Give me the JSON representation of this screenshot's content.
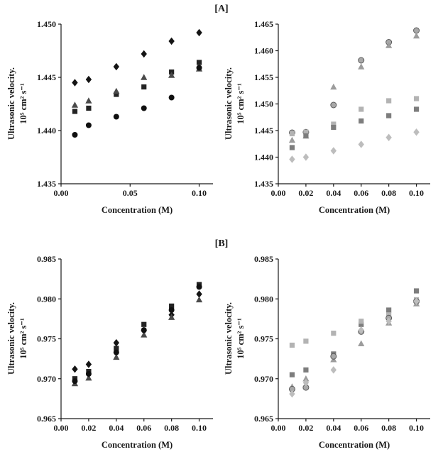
{
  "labels": {
    "panel_a": "[A]",
    "panel_b": "[B]"
  },
  "chart_data": [
    {
      "type": "scatter",
      "panel": "A",
      "position": "left",
      "ylabel_line1": "Ultrasonic velocity.",
      "ylabel_line2": "10⁵ cm² s⁻¹",
      "xlabel": "Concentration (M)",
      "grid": false,
      "legend": "none",
      "xlim": [
        0,
        0.11
      ],
      "ylim": [
        1.435,
        1.45
      ],
      "xticks": [
        0.0,
        0.05,
        0.1
      ],
      "xtick_labels": [
        "0.00",
        "0.05",
        "0.10"
      ],
      "yticks": [
        1.435,
        1.44,
        1.445,
        1.45
      ],
      "ytick_labels": [
        "1.435",
        "1.440",
        "1.445",
        "1.450"
      ],
      "x": [
        0.01,
        0.02,
        0.04,
        0.06,
        0.08,
        0.1
      ],
      "series": [
        {
          "name": "diamond-series",
          "marker": "diamond",
          "color": "#141414",
          "values": [
            1.4445,
            1.4448,
            1.446,
            1.4472,
            1.4484,
            1.4492
          ]
        },
        {
          "name": "square-series",
          "marker": "square",
          "color": "#232323",
          "values": [
            1.4418,
            1.4421,
            1.4434,
            1.4441,
            1.4455,
            1.4464
          ]
        },
        {
          "name": "triangle-series",
          "marker": "triangle",
          "color": "#4a4a4a",
          "values": [
            1.4424,
            1.4428,
            1.4437,
            1.445,
            1.4452,
            1.4458
          ]
        },
        {
          "name": "circle-series",
          "marker": "circle",
          "color": "#101010",
          "values": [
            1.4396,
            1.4405,
            1.4413,
            1.4421,
            1.4431,
            1.4459
          ]
        }
      ]
    },
    {
      "type": "scatter",
      "panel": "A",
      "position": "right",
      "ylabel_line1": "Ultrasonic velocity.",
      "ylabel_line2": "10⁵ cm² s⁻¹",
      "xlabel": "Concentration (M)",
      "grid": false,
      "legend": "none",
      "xlim": [
        0,
        0.11
      ],
      "ylim": [
        1.435,
        1.465
      ],
      "xticks": [
        0.0,
        0.02,
        0.04,
        0.06,
        0.08,
        0.1
      ],
      "xtick_labels": [
        "0.00",
        "0.02",
        "0.04",
        "0.06",
        "0.08",
        "0.10"
      ],
      "yticks": [
        1.435,
        1.44,
        1.445,
        1.45,
        1.455,
        1.46,
        1.465
      ],
      "ytick_labels": [
        "1.435",
        "1.440",
        "1.445",
        "1.450",
        "1.455",
        "1.460",
        "1.465"
      ],
      "x": [
        0.01,
        0.02,
        0.04,
        0.06,
        0.08,
        0.1
      ],
      "series": [
        {
          "name": "circle-series",
          "marker": "circle",
          "color": "#a8a8a8",
          "stroke": "#5a5a5a",
          "values": [
            1.4446,
            1.4447,
            1.4498,
            1.4582,
            1.4616,
            1.4638
          ]
        },
        {
          "name": "triangle-series",
          "marker": "triangle",
          "color": "#9c9c9c",
          "values": [
            1.4432,
            1.444,
            1.4532,
            1.457,
            1.461,
            1.4628
          ]
        },
        {
          "name": "light-square-series",
          "marker": "square",
          "color": "#b3b3b3",
          "values": [
            1.4444,
            1.4447,
            1.4462,
            1.449,
            1.4506,
            1.451
          ]
        },
        {
          "name": "dark-square-series",
          "marker": "square",
          "color": "#7d7d7d",
          "values": [
            1.4418,
            1.444,
            1.4456,
            1.4468,
            1.4478,
            1.449
          ]
        },
        {
          "name": "diamond-series",
          "marker": "diamond",
          "color": "#bdbdbd",
          "values": [
            1.4396,
            1.44,
            1.4412,
            1.4424,
            1.4437,
            1.4447
          ]
        }
      ]
    },
    {
      "type": "scatter",
      "panel": "B",
      "position": "left",
      "ylabel_line1": "Ultrasonic velocity.",
      "ylabel_line2": "10⁵ cm² s⁻¹",
      "xlabel": "Concentration (M)",
      "grid": false,
      "legend": "none",
      "xlim": [
        0,
        0.11
      ],
      "ylim": [
        0.965,
        0.985
      ],
      "xticks": [
        0.0,
        0.02,
        0.04,
        0.06,
        0.08,
        0.1
      ],
      "xtick_labels": [
        "0.00",
        "0.02",
        "0.04",
        "0.06",
        "0.08",
        "0.10"
      ],
      "yticks": [
        0.965,
        0.97,
        0.975,
        0.98,
        0.985
      ],
      "ytick_labels": [
        "0.965",
        "0.970",
        "0.975",
        "0.980",
        "0.985"
      ],
      "x": [
        0.01,
        0.02,
        0.04,
        0.06,
        0.08,
        0.1
      ],
      "series": [
        {
          "name": "diamond-series",
          "marker": "diamond",
          "color": "#141414",
          "values": [
            0.9712,
            0.9718,
            0.9745,
            0.976,
            0.978,
            0.9806
          ]
        },
        {
          "name": "square-series",
          "marker": "square",
          "color": "#232323",
          "values": [
            0.97,
            0.9709,
            0.9738,
            0.9768,
            0.9791,
            0.9818
          ]
        },
        {
          "name": "triangle-series",
          "marker": "triangle",
          "color": "#4a4a4a",
          "values": [
            0.9694,
            0.9701,
            0.9727,
            0.9755,
            0.9777,
            0.9799
          ]
        },
        {
          "name": "circle-series",
          "marker": "circle",
          "color": "#101010",
          "values": [
            0.9697,
            0.9706,
            0.9733,
            0.9761,
            0.9786,
            0.9815
          ]
        }
      ]
    },
    {
      "type": "scatter",
      "panel": "B",
      "position": "right",
      "ylabel_line1": "Ultrasonic velocity.",
      "ylabel_line2": "10⁵ cm² s⁻¹",
      "xlabel": "Concentration (M)",
      "grid": false,
      "legend": "none",
      "xlim": [
        0,
        0.11
      ],
      "ylim": [
        0.965,
        0.985
      ],
      "xticks": [
        0.0,
        0.02,
        0.04,
        0.06,
        0.08,
        0.1
      ],
      "xtick_labels": [
        "0.00",
        "0.02",
        "0.04",
        "0.06",
        "0.08",
        "0.10"
      ],
      "yticks": [
        0.965,
        0.97,
        0.975,
        0.98,
        0.985
      ],
      "ytick_labels": [
        "0.965",
        "0.970",
        "0.975",
        "0.980",
        "0.985"
      ],
      "x": [
        0.01,
        0.02,
        0.04,
        0.06,
        0.08,
        0.1
      ],
      "series": [
        {
          "name": "dark-square-series",
          "marker": "square",
          "color": "#7d7d7d",
          "values": [
            0.9705,
            0.9711,
            0.9731,
            0.9768,
            0.9786,
            0.981
          ]
        },
        {
          "name": "light-square-series",
          "marker": "square",
          "color": "#b3b3b3",
          "values": [
            0.9742,
            0.9747,
            0.9757,
            0.9772,
            0.978,
            0.9799
          ]
        },
        {
          "name": "triangle-series",
          "marker": "triangle",
          "color": "#9c9c9c",
          "values": [
            0.969,
            0.97,
            0.9724,
            0.9744,
            0.977,
            0.9794
          ]
        },
        {
          "name": "circle-series",
          "marker": "circle",
          "color": "#a8a8a8",
          "stroke": "#5a5a5a",
          "values": [
            0.9687,
            0.9689,
            0.9728,
            0.9759,
            0.9776,
            0.9797
          ]
        },
        {
          "name": "diamond-series",
          "marker": "diamond",
          "color": "#bdbdbd",
          "values": [
            0.9681,
            0.9695,
            0.9711,
            0.9761,
            0.9772,
            0.9797
          ]
        }
      ]
    }
  ]
}
